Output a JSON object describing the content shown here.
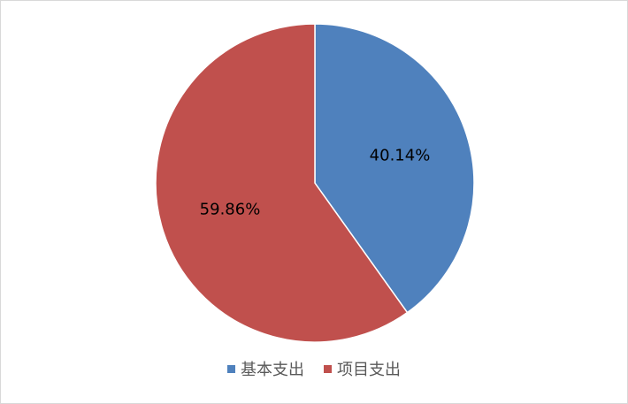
{
  "chart_data": {
    "type": "pie",
    "categories": [
      "基本支出",
      "项目支出"
    ],
    "values": [
      40.14,
      59.86
    ],
    "labels": [
      "40.14%",
      "59.86%"
    ],
    "colors": [
      "#4f81bd",
      "#c0504d"
    ],
    "title": "",
    "legend_position": "bottom",
    "start_angle_deg": 0,
    "direction": "clockwise"
  }
}
